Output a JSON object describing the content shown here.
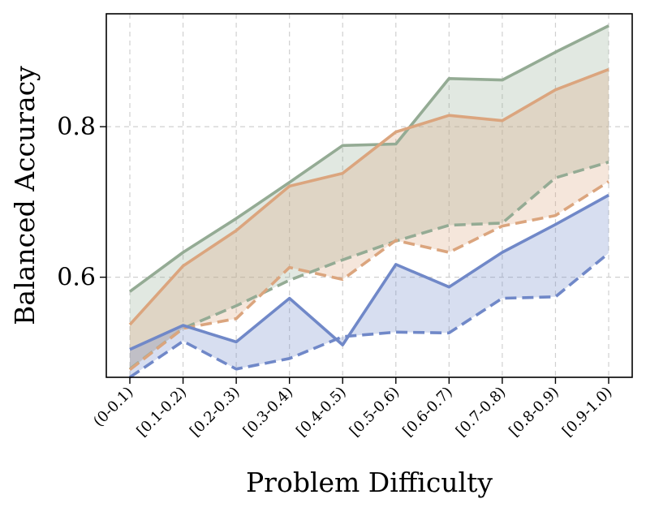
{
  "chart_data": {
    "type": "line",
    "title": "",
    "xlabel": "Problem Difficulty",
    "ylabel": "Balanced Accuracy",
    "categories": [
      "(0-0.1)",
      "[0.1-0.2)",
      "[0.2-0.3)",
      "[0.3-0.4)",
      "[0.4-0.5)",
      "[0.5-0.6)",
      "[0.6-0.7)",
      "[0.7-0.8)",
      "[0.8-0.9)",
      "[0.9-1.0)"
    ],
    "ylim": [
      0.467,
      0.95
    ],
    "yticks": [
      0.6,
      0.8
    ],
    "ytick_labels": [
      "0.6",
      "0.8"
    ],
    "grid": true,
    "series": [
      {
        "name": "green-solid",
        "color": "#94ab94",
        "dash": "solid",
        "values": [
          0.581,
          0.633,
          0.678,
          0.726,
          0.775,
          0.777,
          0.864,
          0.862,
          0.899,
          0.934
        ]
      },
      {
        "name": "green-dashed",
        "color": "#94ab94",
        "dash": "dashed",
        "values": [
          0.478,
          0.532,
          0.562,
          0.596,
          0.623,
          0.648,
          0.669,
          0.672,
          0.732,
          0.753
        ]
      },
      {
        "name": "orange-solid",
        "color": "#dba57e",
        "dash": "solid",
        "values": [
          0.537,
          0.615,
          0.662,
          0.721,
          0.738,
          0.793,
          0.815,
          0.808,
          0.849,
          0.876
        ]
      },
      {
        "name": "orange-dashed",
        "color": "#dba57e",
        "dash": "dashed",
        "values": [
          0.477,
          0.532,
          0.545,
          0.613,
          0.597,
          0.649,
          0.633,
          0.668,
          0.682,
          0.727
        ]
      },
      {
        "name": "blue-solid",
        "color": "#7088c8",
        "dash": "solid",
        "values": [
          0.504,
          0.536,
          0.514,
          0.572,
          0.51,
          0.617,
          0.587,
          0.633,
          0.67,
          0.709
        ]
      },
      {
        "name": "blue-dashed",
        "color": "#7088c8",
        "dash": "dashed",
        "values": [
          0.467,
          0.515,
          0.478,
          0.492,
          0.521,
          0.527,
          0.526,
          0.572,
          0.574,
          0.632
        ]
      }
    ],
    "bands": [
      {
        "name": "green-band",
        "upper": "green-solid",
        "lower": "green-dashed",
        "color": "#94ab94",
        "opacity": 0.28
      },
      {
        "name": "orange-band",
        "upper": "orange-solid",
        "lower": "orange-dashed",
        "color": "#dba57e",
        "opacity": 0.28
      },
      {
        "name": "blue-band",
        "upper": "blue-solid",
        "lower": "blue-dashed",
        "color": "#7088c8",
        "opacity": 0.28
      }
    ]
  }
}
